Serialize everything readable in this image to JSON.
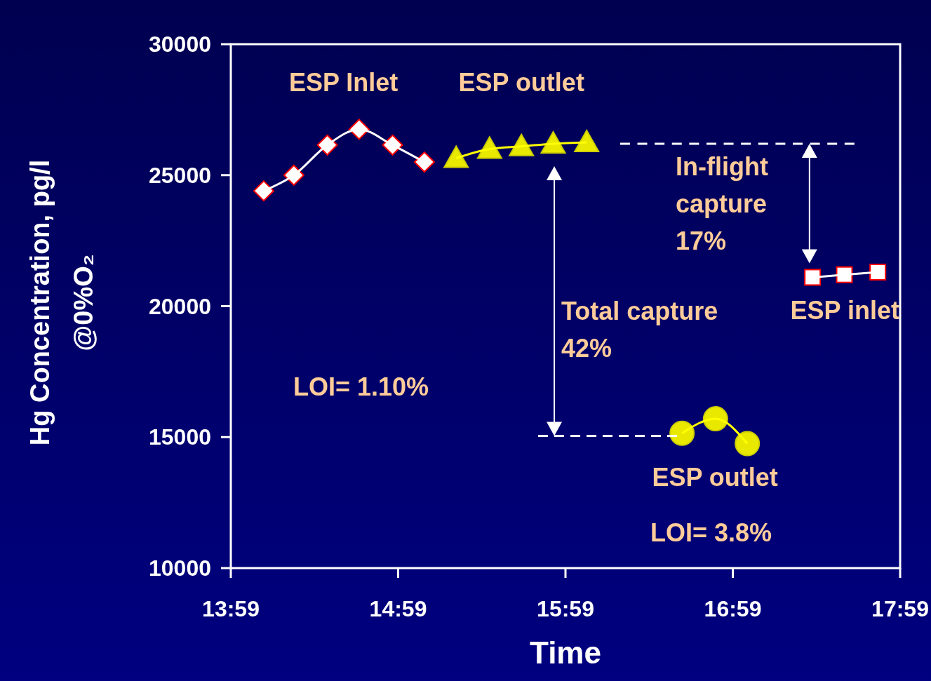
{
  "chart_data": {
    "type": "line",
    "xlabel": "Time",
    "ylabel": "Hg Concentration, pg/l\n@0%O₂",
    "xlim": [
      13.9833,
      17.9833
    ],
    "ylim": [
      10000,
      30000
    ],
    "xticks": [
      {
        "value": 13.9833,
        "label": "13:59"
      },
      {
        "value": 14.9833,
        "label": "14:59"
      },
      {
        "value": 15.9833,
        "label": "15:59"
      },
      {
        "value": 16.9833,
        "label": "16:59"
      },
      {
        "value": 17.9833,
        "label": "17:59"
      }
    ],
    "yticks": [
      10000,
      15000,
      20000,
      25000,
      30000
    ],
    "grid": false,
    "legend": false,
    "series": [
      {
        "name": "ESP Inlet",
        "color": "#ffffff",
        "marker": "diamond",
        "x": [
          14.18,
          14.36,
          14.56,
          14.75,
          14.95,
          15.14
        ],
        "values": [
          24400,
          25000,
          26150,
          26750,
          26150,
          25500
        ]
      },
      {
        "name": "ESP outlet",
        "color": "#ffff00",
        "marker": "triangle",
        "x": [
          15.33,
          15.53,
          15.72,
          15.91,
          16.11
        ],
        "values": [
          25650,
          26000,
          26100,
          26200,
          26250
        ]
      },
      {
        "name": "ESP inlet",
        "color": "#ffffff",
        "marker": "square",
        "x": [
          17.46,
          17.65,
          17.85
        ],
        "values": [
          21100,
          21200,
          21300
        ]
      },
      {
        "name": "ESP outlet",
        "color": "#ffff00",
        "marker": "circle",
        "x": [
          16.68,
          16.88,
          17.07
        ],
        "values": [
          15150,
          15700,
          14750
        ]
      },
      {
        "type": "line",
        "color": "#ffffff",
        "marker": "none",
        "line_style": "dashed",
        "x": [
          16.31,
          17.71
        ],
        "values": [
          26200,
          26200
        ]
      },
      {
        "type": "line",
        "color": "#ffffff",
        "marker": "none",
        "line_style": "dashed",
        "x": [
          15.82,
          16.65
        ],
        "values": [
          15050,
          15050
        ]
      }
    ],
    "annotations": [
      "In-flight\ncapture\n17%",
      "Total capture\n42%",
      "LOI= 1.10%",
      "LOI= 3.8%"
    ]
  }
}
